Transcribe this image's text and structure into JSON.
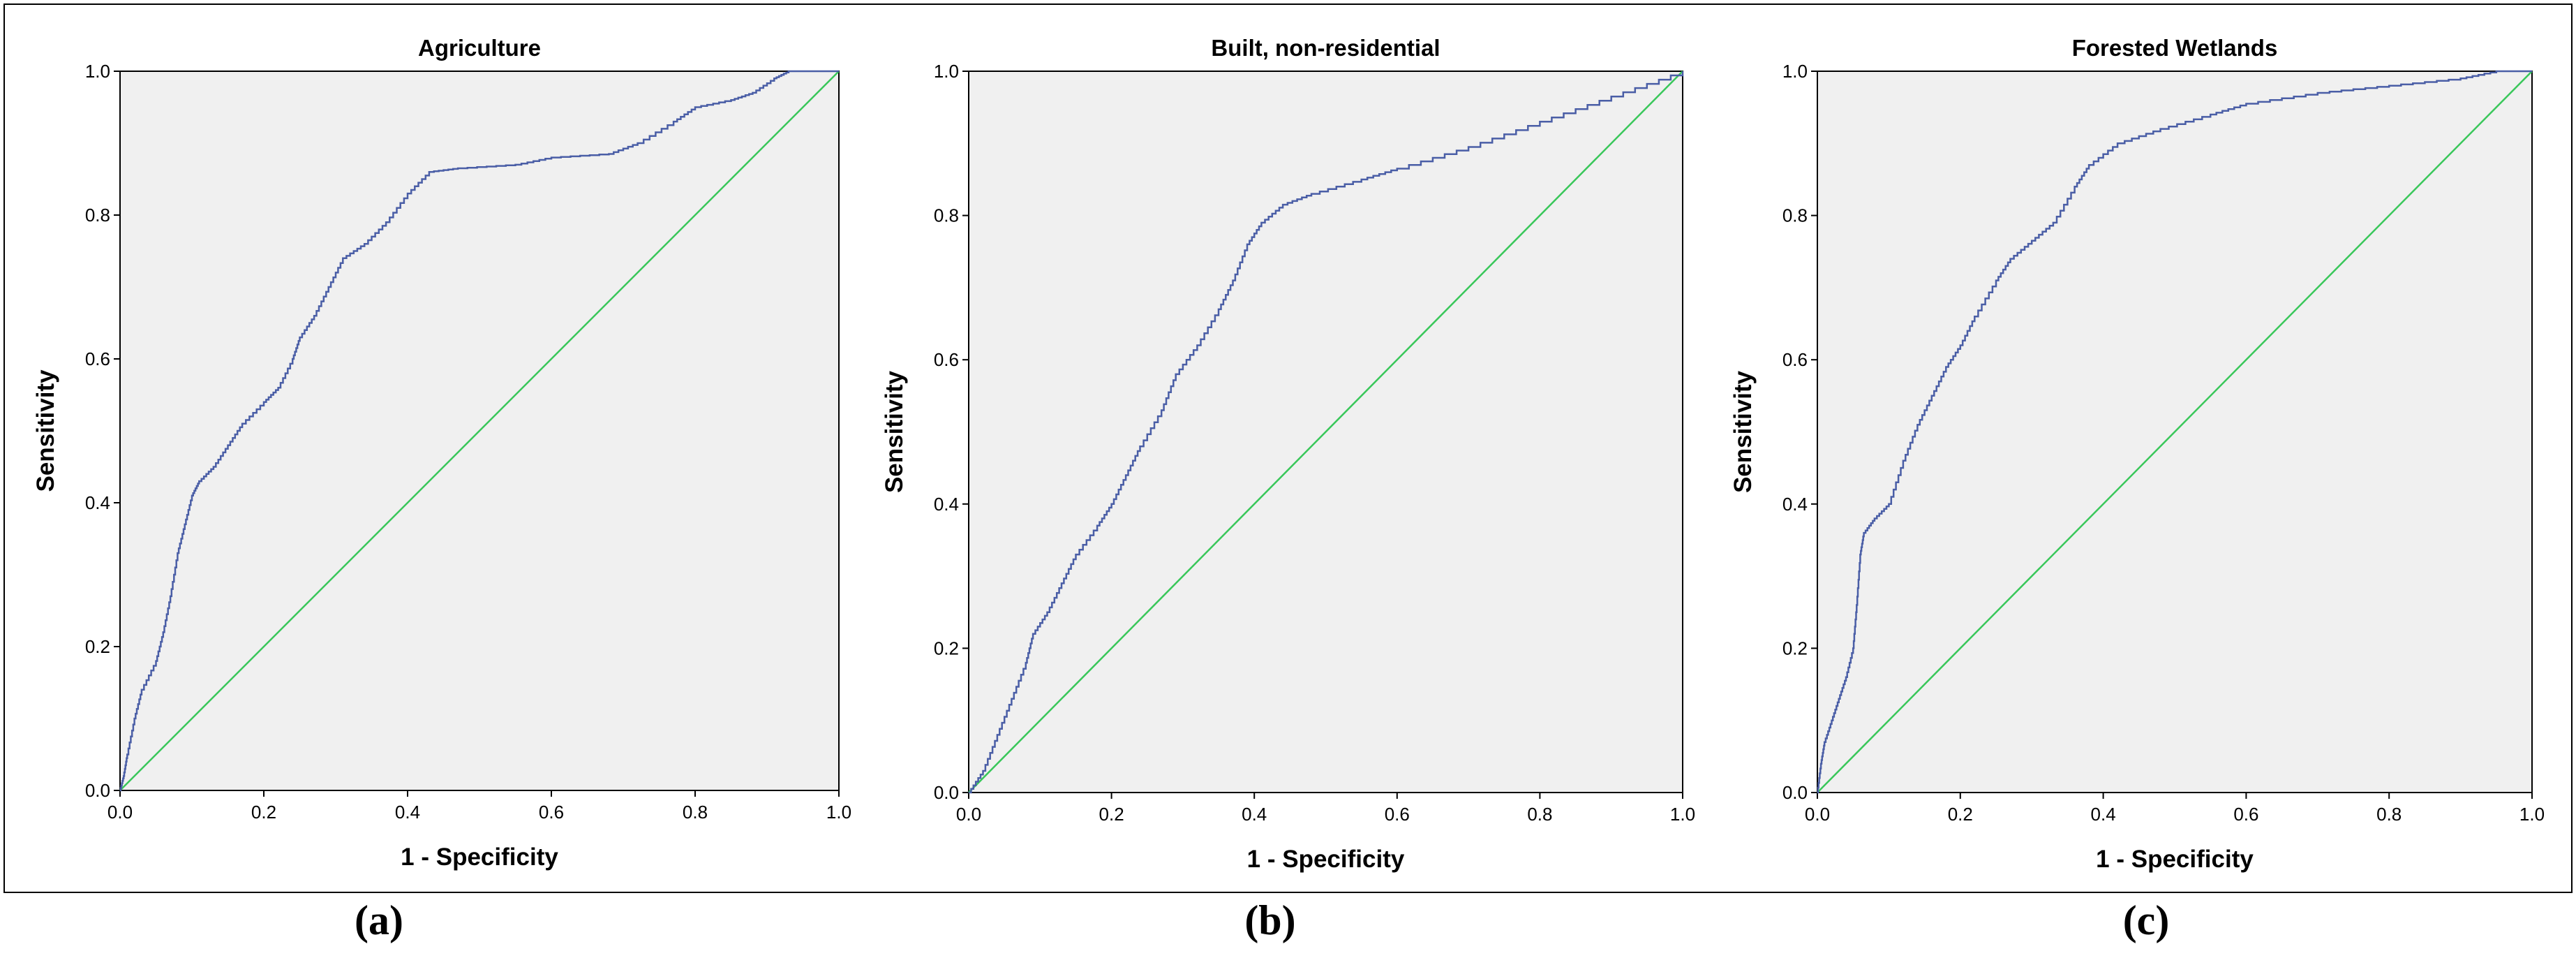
{
  "chart_data": [
    {
      "type": "line",
      "title": "Agriculture",
      "caption": "(a)",
      "xlabel": "1 - Specificity",
      "ylabel": "Sensitivity",
      "xlim": [
        0,
        1
      ],
      "ylim": [
        0,
        1
      ],
      "xticks": [
        "0.0",
        "0.2",
        "0.4",
        "0.6",
        "0.8",
        "1.0"
      ],
      "yticks": [
        "0.0",
        "0.2",
        "0.4",
        "0.6",
        "0.8",
        "1.0"
      ],
      "grid": false,
      "colors": {
        "curve": "#4a5ea6",
        "reference": "#39c75a",
        "plot_bg": "#f0f0f0"
      },
      "series": [
        {
          "values": [
            [
              0,
              0
            ],
            [
              0.005,
              0.02
            ],
            [
              0.01,
              0.05
            ],
            [
              0.02,
              0.1
            ],
            [
              0.03,
              0.14
            ],
            [
              0.05,
              0.18
            ],
            [
              0.06,
              0.22
            ],
            [
              0.07,
              0.27
            ],
            [
              0.08,
              0.33
            ],
            [
              0.09,
              0.37
            ],
            [
              0.1,
              0.41
            ],
            [
              0.11,
              0.43
            ],
            [
              0.13,
              0.45
            ],
            [
              0.15,
              0.48
            ],
            [
              0.17,
              0.51
            ],
            [
              0.2,
              0.54
            ],
            [
              0.22,
              0.56
            ],
            [
              0.24,
              0.6
            ],
            [
              0.25,
              0.63
            ],
            [
              0.27,
              0.66
            ],
            [
              0.29,
              0.7
            ],
            [
              0.31,
              0.74
            ],
            [
              0.34,
              0.76
            ],
            [
              0.37,
              0.79
            ],
            [
              0.4,
              0.83
            ],
            [
              0.43,
              0.86
            ],
            [
              0.47,
              0.865
            ],
            [
              0.55,
              0.87
            ],
            [
              0.6,
              0.88
            ],
            [
              0.68,
              0.885
            ],
            [
              0.72,
              0.9
            ],
            [
              0.77,
              0.93
            ],
            [
              0.8,
              0.95
            ],
            [
              0.85,
              0.96
            ],
            [
              0.88,
              0.97
            ],
            [
              0.91,
              0.99
            ],
            [
              0.93,
              1.0
            ],
            [
              1.0,
              1.0
            ]
          ]
        },
        {
          "values": [
            [
              0,
              0
            ],
            [
              1,
              1
            ]
          ]
        }
      ]
    },
    {
      "type": "line",
      "title": "Built, non-residential",
      "caption": "(b)",
      "xlabel": "1 - Specificity",
      "ylabel": "Sensitivity",
      "xlim": [
        0,
        1
      ],
      "ylim": [
        0,
        1
      ],
      "xticks": [
        "0.0",
        "0.2",
        "0.4",
        "0.6",
        "0.8",
        "1.0"
      ],
      "yticks": [
        "0.0",
        "0.2",
        "0.4",
        "0.6",
        "0.8",
        "1.0"
      ],
      "grid": false,
      "colors": {
        "curve": "#4a5ea6",
        "reference": "#39c75a",
        "plot_bg": "#f0f0f0"
      },
      "series": [
        {
          "values": [
            [
              0,
              0
            ],
            [
              0.02,
              0.03
            ],
            [
              0.04,
              0.08
            ],
            [
              0.06,
              0.13
            ],
            [
              0.08,
              0.18
            ],
            [
              0.09,
              0.22
            ],
            [
              0.11,
              0.25
            ],
            [
              0.13,
              0.29
            ],
            [
              0.15,
              0.33
            ],
            [
              0.18,
              0.37
            ],
            [
              0.2,
              0.4
            ],
            [
              0.22,
              0.44
            ],
            [
              0.24,
              0.48
            ],
            [
              0.27,
              0.53
            ],
            [
              0.29,
              0.58
            ],
            [
              0.32,
              0.62
            ],
            [
              0.35,
              0.67
            ],
            [
              0.37,
              0.71
            ],
            [
              0.39,
              0.76
            ],
            [
              0.41,
              0.79
            ],
            [
              0.44,
              0.815
            ],
            [
              0.48,
              0.83
            ],
            [
              0.55,
              0.85
            ],
            [
              0.6,
              0.865
            ],
            [
              0.7,
              0.895
            ],
            [
              0.8,
              0.93
            ],
            [
              0.9,
              0.965
            ],
            [
              1.0,
              1.0
            ]
          ]
        },
        {
          "values": [
            [
              0,
              0
            ],
            [
              1,
              1
            ]
          ]
        }
      ]
    },
    {
      "type": "line",
      "title": "Forested Wetlands",
      "caption": "(c)",
      "xlabel": "1 - Specificity",
      "ylabel": "Sensitivity",
      "xlim": [
        0,
        1
      ],
      "ylim": [
        0,
        1
      ],
      "xticks": [
        "0.0",
        "0.2",
        "0.4",
        "0.6",
        "0.8",
        "1.0"
      ],
      "yticks": [
        "0.0",
        "0.2",
        "0.4",
        "0.6",
        "0.8",
        "1.0"
      ],
      "grid": false,
      "colors": {
        "curve": "#4a5ea6",
        "reference": "#39c75a",
        "plot_bg": "#f0f0f0"
      },
      "series": [
        {
          "values": [
            [
              0,
              0
            ],
            [
              0.005,
              0.04
            ],
            [
              0.01,
              0.07
            ],
            [
              0.02,
              0.1
            ],
            [
              0.03,
              0.13
            ],
            [
              0.04,
              0.16
            ],
            [
              0.05,
              0.2
            ],
            [
              0.055,
              0.26
            ],
            [
              0.06,
              0.33
            ],
            [
              0.065,
              0.36
            ],
            [
              0.08,
              0.38
            ],
            [
              0.1,
              0.4
            ],
            [
              0.12,
              0.46
            ],
            [
              0.14,
              0.51
            ],
            [
              0.16,
              0.55
            ],
            [
              0.18,
              0.59
            ],
            [
              0.2,
              0.62
            ],
            [
              0.22,
              0.66
            ],
            [
              0.25,
              0.71
            ],
            [
              0.27,
              0.74
            ],
            [
              0.3,
              0.765
            ],
            [
              0.33,
              0.79
            ],
            [
              0.36,
              0.84
            ],
            [
              0.38,
              0.87
            ],
            [
              0.42,
              0.9
            ],
            [
              0.48,
              0.92
            ],
            [
              0.55,
              0.94
            ],
            [
              0.6,
              0.955
            ],
            [
              0.7,
              0.97
            ],
            [
              0.8,
              0.98
            ],
            [
              0.9,
              0.99
            ],
            [
              0.95,
              1.0
            ],
            [
              1.0,
              1.0
            ]
          ]
        },
        {
          "values": [
            [
              0,
              0
            ],
            [
              1,
              1
            ]
          ]
        }
      ]
    }
  ]
}
